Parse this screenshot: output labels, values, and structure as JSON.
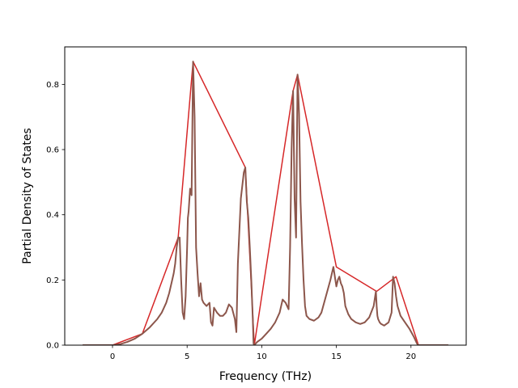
{
  "chart_data": {
    "type": "line",
    "title": "",
    "xlabel": "Frequency (THz)",
    "ylabel": "Partial Density of States",
    "xlim": [
      -3.2,
      23.7
    ],
    "ylim": [
      0.0,
      0.915
    ],
    "xticks": [
      0,
      5,
      10,
      15,
      20
    ],
    "xtick_labels": [
      "0",
      "5",
      "10",
      "15",
      "20"
    ],
    "yticks": [
      0.0,
      0.2,
      0.4,
      0.6,
      0.8
    ],
    "ytick_labels": [
      "0.0",
      "0.2",
      "0.4",
      "0.6",
      "0.8"
    ],
    "grid": false,
    "series": [
      {
        "color": "#8c564b",
        "x": [
          -2.0,
          -1.0,
          0.0,
          0.5,
          1.0,
          1.5,
          2.0,
          2.5,
          3.0,
          3.3,
          3.6,
          3.8,
          3.9,
          4.0,
          4.1,
          4.2,
          4.3,
          4.4,
          4.5,
          4.6,
          4.7,
          4.8,
          4.9,
          5.0,
          5.05,
          5.1,
          5.2,
          5.3,
          5.4,
          5.5,
          5.6,
          5.7,
          5.8,
          5.9,
          6.0,
          6.1,
          6.3,
          6.5,
          6.6,
          6.7,
          6.8,
          7.0,
          7.2,
          7.4,
          7.6,
          7.8,
          8.0,
          8.2,
          8.3,
          8.4,
          8.6,
          8.8,
          8.9,
          9.0,
          9.1,
          9.2,
          9.3,
          9.4,
          9.45,
          9.5,
          9.7,
          10.0,
          10.3,
          10.6,
          10.9,
          11.2,
          11.4,
          11.6,
          11.8,
          11.9,
          12.0,
          12.1,
          12.2,
          12.3,
          12.4,
          12.5,
          12.6,
          12.7,
          12.8,
          12.9,
          13.0,
          13.2,
          13.5,
          13.8,
          14.0,
          14.3,
          14.6,
          14.8,
          14.9,
          15.0,
          15.1,
          15.2,
          15.3,
          15.4,
          15.5,
          15.6,
          15.8,
          16.0,
          16.3,
          16.6,
          16.9,
          17.2,
          17.5,
          17.65,
          17.7,
          17.75,
          17.8,
          17.9,
          18.0,
          18.2,
          18.5,
          18.7,
          18.8,
          18.9,
          19.0,
          19.1,
          19.3,
          19.6,
          19.9,
          20.2,
          20.4,
          20.5,
          20.6,
          21.0,
          22.0,
          22.5
        ],
        "y": [
          0.0,
          0.0,
          0.0,
          0.003,
          0.01,
          0.02,
          0.035,
          0.055,
          0.08,
          0.1,
          0.13,
          0.16,
          0.18,
          0.2,
          0.22,
          0.25,
          0.3,
          0.33,
          0.33,
          0.2,
          0.1,
          0.08,
          0.15,
          0.3,
          0.39,
          0.41,
          0.48,
          0.46,
          0.87,
          0.7,
          0.3,
          0.22,
          0.15,
          0.19,
          0.14,
          0.13,
          0.12,
          0.13,
          0.07,
          0.06,
          0.115,
          0.1,
          0.09,
          0.09,
          0.1,
          0.125,
          0.115,
          0.08,
          0.04,
          0.25,
          0.45,
          0.53,
          0.545,
          0.44,
          0.39,
          0.3,
          0.2,
          0.08,
          0.005,
          0.0,
          0.01,
          0.02,
          0.035,
          0.05,
          0.07,
          0.1,
          0.14,
          0.13,
          0.11,
          0.3,
          0.6,
          0.78,
          0.45,
          0.33,
          0.83,
          0.71,
          0.44,
          0.31,
          0.2,
          0.12,
          0.09,
          0.08,
          0.075,
          0.085,
          0.1,
          0.15,
          0.2,
          0.24,
          0.21,
          0.18,
          0.2,
          0.21,
          0.19,
          0.18,
          0.16,
          0.12,
          0.095,
          0.08,
          0.07,
          0.065,
          0.07,
          0.085,
          0.12,
          0.165,
          0.12,
          0.09,
          0.08,
          0.07,
          0.065,
          0.06,
          0.07,
          0.1,
          0.21,
          0.19,
          0.15,
          0.12,
          0.09,
          0.07,
          0.05,
          0.025,
          0.005,
          0.0,
          0.0,
          0.0,
          0.0,
          0.0
        ]
      },
      {
        "color": "#d62728",
        "x": [
          -2.0,
          0.0,
          2.0,
          4.4,
          5.4,
          8.9,
          9.5,
          12.1,
          12.4,
          15.0,
          17.7,
          19.0,
          20.5,
          22.5
        ],
        "y": [
          0.0,
          0.0,
          0.035,
          0.33,
          0.87,
          0.545,
          0.0,
          0.78,
          0.83,
          0.24,
          0.165,
          0.21,
          0.0,
          0.0
        ]
      }
    ]
  }
}
